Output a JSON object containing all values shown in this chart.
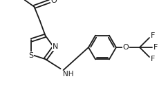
{
  "background_color": "#ffffff",
  "line_color": "#1a1a1a",
  "line_width": 1.3,
  "font_size": 7.5,
  "figsize": [
    2.43,
    1.34
  ],
  "dpi": 100,
  "xlim": [
    0,
    243
  ],
  "ylim": [
    0,
    134
  ]
}
